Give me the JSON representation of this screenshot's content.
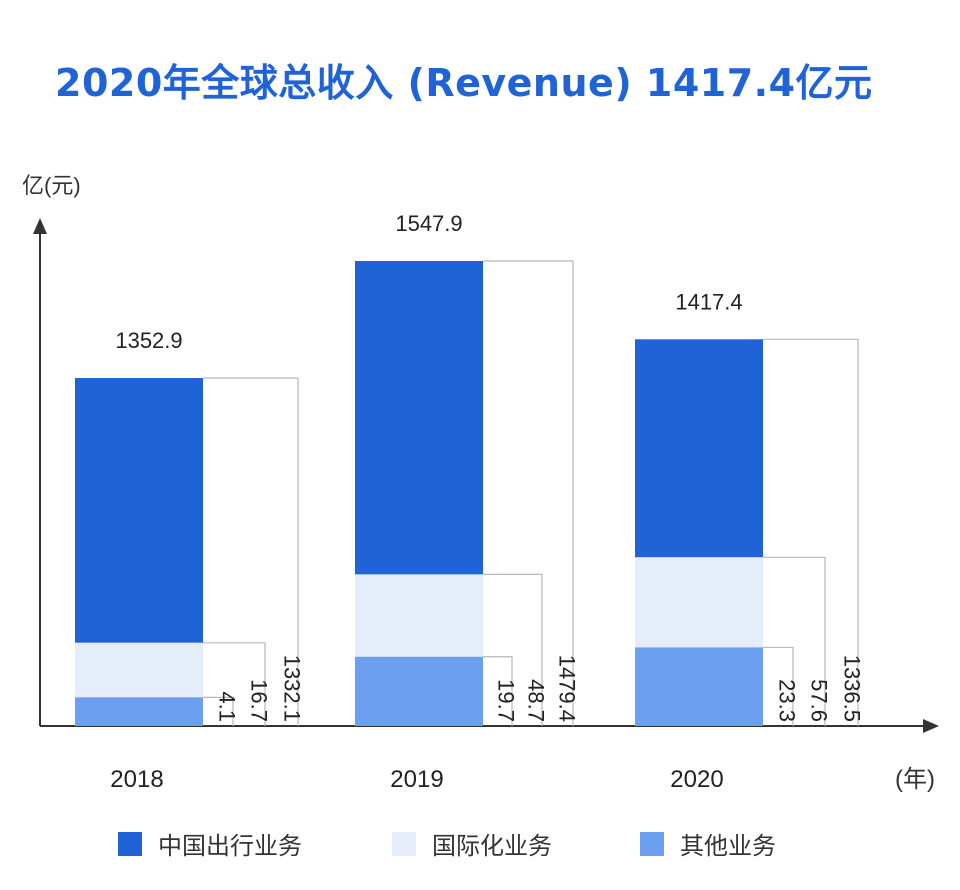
{
  "title": "2020年全球总收入 (Revenue) 1417.4亿元",
  "chart_data": {
    "type": "bar",
    "stacked": true,
    "categories": [
      "2018",
      "2019",
      "2020"
    ],
    "totals": [
      "1352.9",
      "1547.9",
      "1417.4"
    ],
    "series": [
      {
        "name": "中国出行业务",
        "values": [
          1332.1,
          1479.4,
          1336.5
        ],
        "labels": [
          "1332.1",
          "1479.4",
          "1336.5"
        ],
        "color": "#1f63d6"
      },
      {
        "name": "国际化业务",
        "values": [
          16.7,
          48.7,
          57.6
        ],
        "labels": [
          "16.7",
          "48.7",
          "57.6"
        ],
        "color": "#e5edfa"
      },
      {
        "name": "其他业务",
        "values": [
          4.1,
          19.7,
          23.3
        ],
        "labels": [
          "4.1",
          "19.7",
          "23.3"
        ],
        "color": "#6d9ff0"
      }
    ],
    "ylabel": "亿(元)",
    "xlabel": "(年)",
    "legend_position": "bottom",
    "grid": false
  }
}
